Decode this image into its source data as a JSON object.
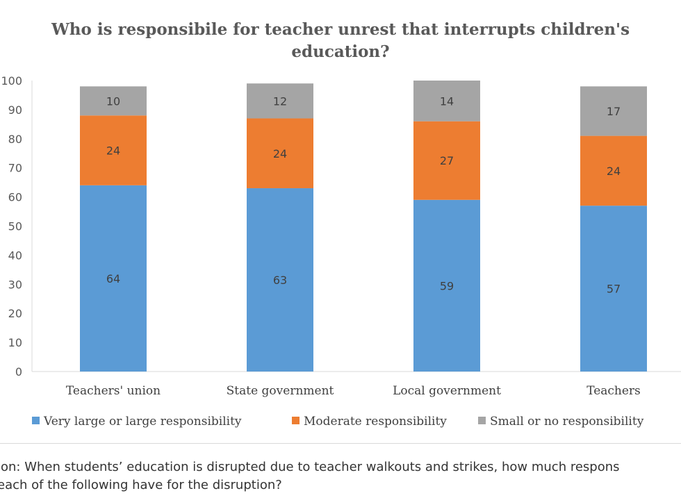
{
  "chart_data": {
    "type": "bar",
    "stacked": true,
    "title": "Who is responsibile for teacher unrest that interrupts children's education?",
    "title_lines": [
      "Who is responsibile for teacher unrest that interrupts children's",
      "education?"
    ],
    "categories": [
      "Teachers' union",
      "State government",
      "Local government",
      "Teachers"
    ],
    "series": [
      {
        "name": "Very large or large responsibility",
        "values": [
          64,
          63,
          59,
          57
        ],
        "color": "#5b9bd5"
      },
      {
        "name": "Moderate responsibility",
        "values": [
          24,
          24,
          27,
          24
        ],
        "color": "#ed7d31"
      },
      {
        "name": "Small or no responsibility",
        "values": [
          10,
          12,
          14,
          17
        ],
        "color": "#a5a5a5"
      }
    ],
    "ylim": [
      0,
      100
    ],
    "yticks": [
      0,
      10,
      20,
      30,
      40,
      50,
      60,
      70,
      80,
      90,
      100
    ],
    "xlabel": "",
    "ylabel": "",
    "grid": false,
    "legend": "bottom"
  },
  "caption": {
    "line1": "ion: When students’ education is disrupted due to teacher walkouts and strikes, how much respons",
    "line2": "each of the following have for the disruption?"
  }
}
